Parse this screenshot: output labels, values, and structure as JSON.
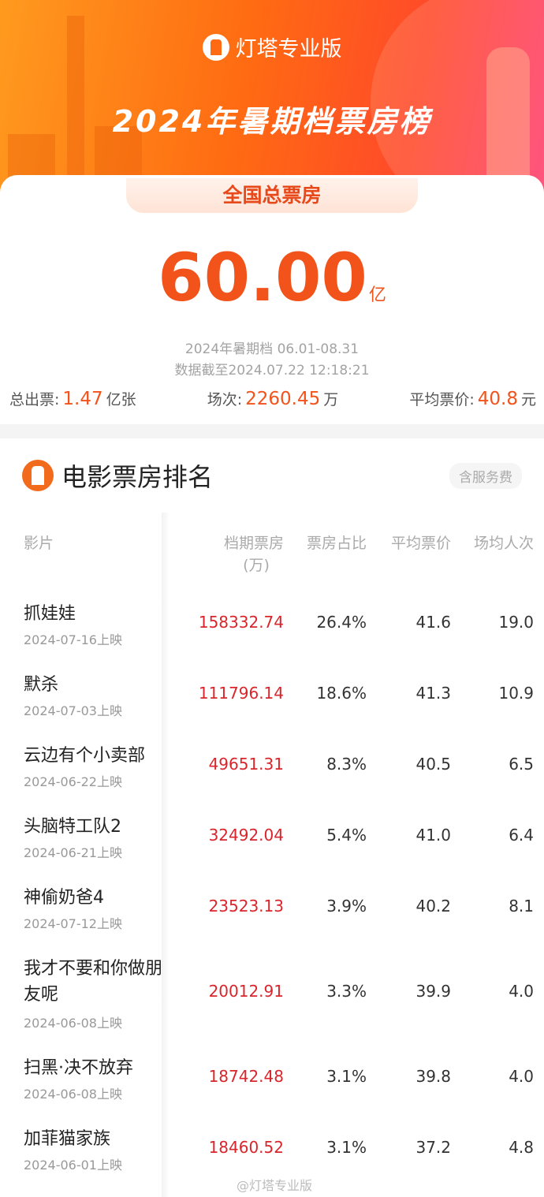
{
  "header": {
    "brand": "灯塔专业版",
    "title": "2024年暑期档票房榜",
    "tab": "全国总票房"
  },
  "summary": {
    "total": "60.00",
    "unit": "亿",
    "period": "2024年暑期档 06.01-08.31",
    "updated": "数据截至2024.07.22 12:18:21",
    "tickets_label": "总出票:",
    "tickets": "1.47",
    "tickets_unit": "亿张",
    "shows_label": "场次:",
    "shows": "2260.45",
    "shows_unit": "万",
    "price_label": "平均票价:",
    "price": "40.8",
    "price_unit": "元"
  },
  "ranking": {
    "title": "电影票房排名",
    "badge": "含服务费",
    "columns": [
      "影片",
      "档期票房",
      "(万)",
      "票房占比",
      "平均票价",
      "场均人次"
    ],
    "rows": [
      {
        "name": "抓娃娃",
        "date": "2024-07-16上映",
        "box": "158332.74",
        "share": "26.4%",
        "avg": "41.6",
        "ppl": "19.0"
      },
      {
        "name": "默杀",
        "date": "2024-07-03上映",
        "box": "111796.14",
        "share": "18.6%",
        "avg": "41.3",
        "ppl": "10.9"
      },
      {
        "name": "云边有个小卖部",
        "date": "2024-06-22上映",
        "box": "49651.31",
        "share": "8.3%",
        "avg": "40.5",
        "ppl": "6.5"
      },
      {
        "name": "头脑特工队2",
        "date": "2024-06-21上映",
        "box": "32492.04",
        "share": "5.4%",
        "avg": "41.0",
        "ppl": "6.4"
      },
      {
        "name": "神偷奶爸4",
        "date": "2024-07-12上映",
        "box": "23523.13",
        "share": "3.9%",
        "avg": "40.2",
        "ppl": "8.1"
      },
      {
        "name": "我才不要和你做朋友呢",
        "date": "2024-06-08上映",
        "box": "20012.91",
        "share": "3.3%",
        "avg": "39.9",
        "ppl": "4.0"
      },
      {
        "name": "扫黑·决不放弃",
        "date": "2024-06-08上映",
        "box": "18742.48",
        "share": "3.1%",
        "avg": "39.8",
        "ppl": "4.0"
      },
      {
        "name": "加菲猫家族",
        "date": "2024-06-01上映",
        "box": "18460.52",
        "share": "3.1%",
        "avg": "37.2",
        "ppl": "4.8"
      }
    ]
  },
  "watermark": "@灯塔专业版",
  "colors": {
    "accent": "#f2531b",
    "box_office": "#d9252b"
  }
}
